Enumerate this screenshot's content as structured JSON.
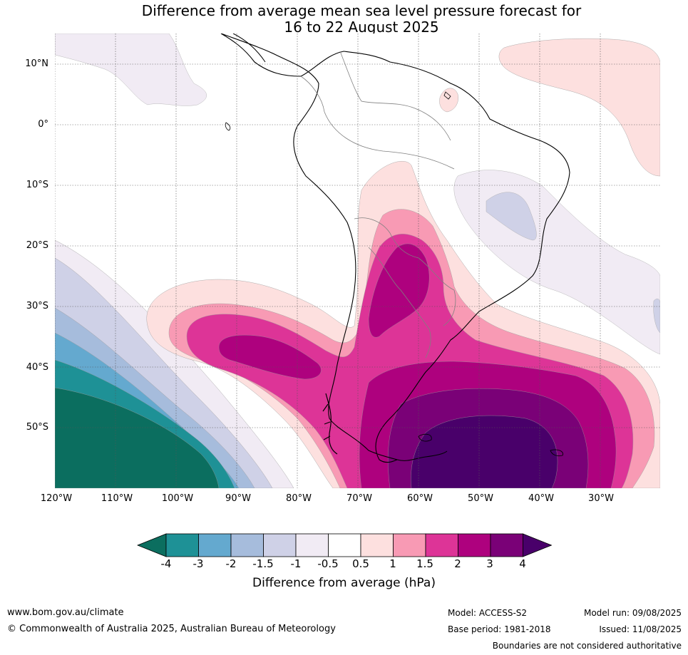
{
  "title": {
    "line1": "Difference from average mean sea level pressure forecast for",
    "line2": "16 to 22 August 2025"
  },
  "map": {
    "latitude_labels": [
      "10°N",
      "0°",
      "10°S",
      "20°S",
      "30°S",
      "40°S",
      "50°S"
    ],
    "longitude_labels": [
      "120°W",
      "110°W",
      "100°W",
      "90°W",
      "80°W",
      "70°W",
      "60°W",
      "50°W",
      "40°W",
      "30°W"
    ],
    "land_fill": "#ffffff",
    "coast_color": "#000000",
    "border_color": "#808080",
    "gridline_color": "#555555"
  },
  "colorbar": {
    "ticks": [
      "-4",
      "-3",
      "-2",
      "-1.5",
      "-1",
      "-0.5",
      "0.5",
      "1",
      "1.5",
      "2",
      "3",
      "4"
    ],
    "colors": [
      "#0b6e5f",
      "#1e9196",
      "#64a9cf",
      "#a6bcdc",
      "#cfd1e7",
      "#f1ebf4",
      "#ffffff",
      "#fde0df",
      "#f89ab4",
      "#dd3497",
      "#ae017e",
      "#7a0177",
      "#49006a"
    ],
    "label": "Difference from average (hPa)"
  },
  "footer": {
    "website": "www.bom.gov.au/climate",
    "copyright": "© Commonwealth of Australia 2025, Australian Bureau of Meteorology",
    "model": "Model: ACCESS-S2",
    "base_period": "Base period: 1981-2018",
    "model_run": "Model run: 09/08/2025",
    "issued": "Issued: 11/08/2025",
    "boundaries": "Boundaries are not considered authoritative"
  }
}
